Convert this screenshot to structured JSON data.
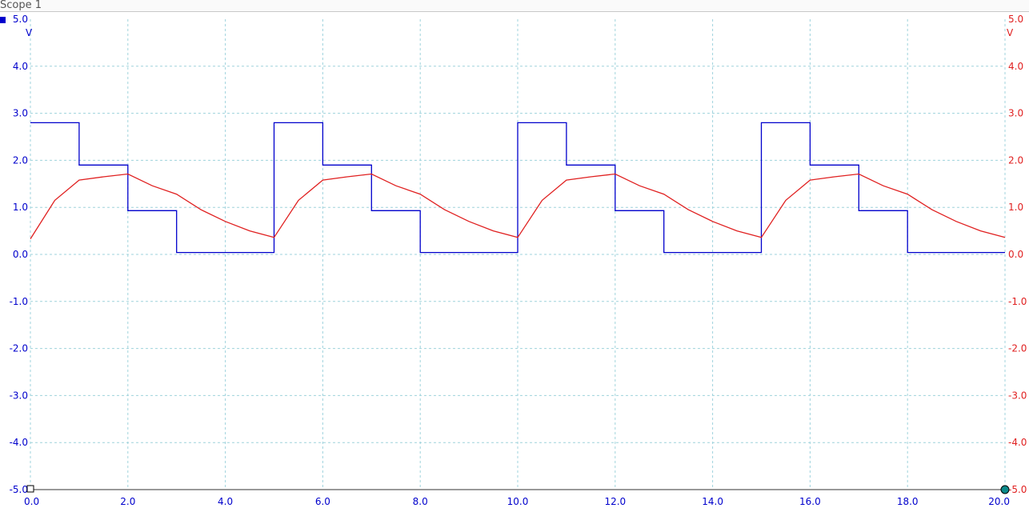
{
  "window": {
    "title": "Scope 1"
  },
  "colors": {
    "ch1": "#0000cc",
    "ch2": "#e02020",
    "grid": "#9fd3dc",
    "axis": "#333333",
    "cursor": "#0a8a8a"
  },
  "chart_data": {
    "type": "line",
    "title": "",
    "xlabel": "",
    "ylabel": "V",
    "y2label": "V",
    "xlim": [
      0,
      20
    ],
    "ylim": [
      -5,
      5
    ],
    "x_ticks": [
      "0.0",
      "2.0",
      "4.0",
      "6.0",
      "8.0",
      "10.0",
      "12.0",
      "14.0",
      "16.0",
      "18.0",
      "20.0"
    ],
    "y_ticks": [
      "5.0",
      "4.0",
      "3.0",
      "2.0",
      "1.0",
      "0.0",
      "-1.0",
      "-2.0",
      "-3.0",
      "-4.0",
      "-5.0"
    ],
    "grid": true,
    "series": [
      {
        "axis": "left",
        "step": true,
        "x": [
          0,
          1,
          2,
          3,
          5,
          6,
          7,
          8,
          10,
          11,
          12,
          13,
          15,
          16,
          17,
          18,
          20
        ],
        "values": [
          2.8,
          1.9,
          0.93,
          0.04,
          2.8,
          1.9,
          0.93,
          0.04,
          2.8,
          1.9,
          0.93,
          0.04,
          2.8,
          1.9,
          0.93,
          0.04,
          0.04
        ]
      },
      {
        "axis": "right",
        "x": [
          0,
          0.5,
          1,
          1.5,
          2,
          2.5,
          3,
          3.5,
          4,
          4.5,
          5,
          5.5,
          6,
          6.5,
          7,
          7.5,
          8,
          8.5,
          9,
          9.5,
          10,
          10.5,
          11,
          11.5,
          12,
          12.5,
          13,
          13.5,
          14,
          14.5,
          15,
          15.5,
          16,
          16.5,
          17,
          17.5,
          18,
          18.5,
          19,
          19.5,
          20
        ],
        "values": [
          0.33,
          1.15,
          1.58,
          1.65,
          1.71,
          1.46,
          1.28,
          0.95,
          0.7,
          0.5,
          0.36,
          1.15,
          1.58,
          1.65,
          1.71,
          1.46,
          1.28,
          0.95,
          0.7,
          0.5,
          0.36,
          1.15,
          1.58,
          1.65,
          1.71,
          1.46,
          1.28,
          0.95,
          0.7,
          0.5,
          0.36,
          1.15,
          1.58,
          1.65,
          1.71,
          1.46,
          1.28,
          0.95,
          0.7,
          0.5,
          0.36
        ]
      }
    ]
  }
}
